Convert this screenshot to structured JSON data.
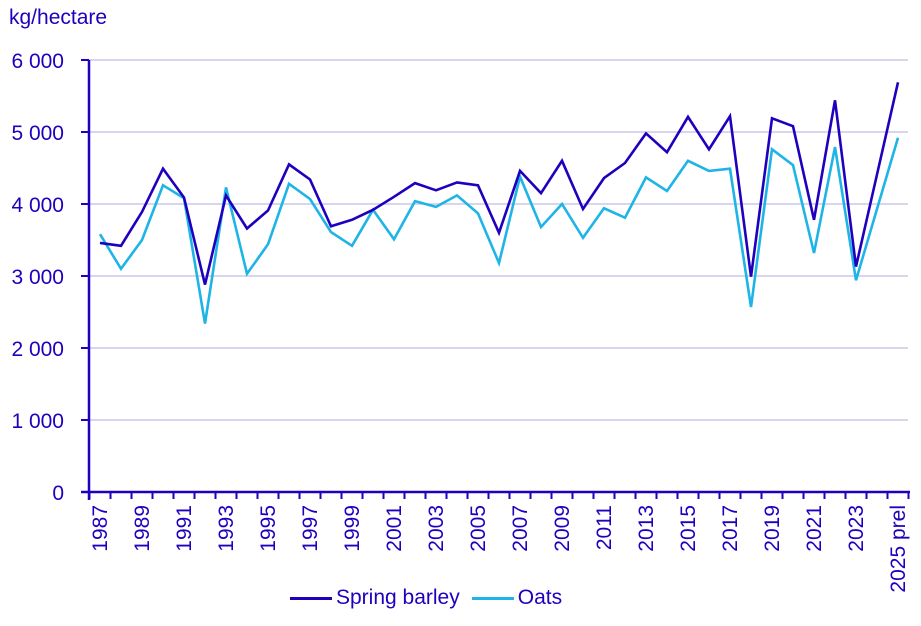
{
  "chart_data": {
    "type": "line",
    "title": "",
    "ylabel": "kg/hectare",
    "xlabel": "",
    "ylim": [
      0,
      6000
    ],
    "yticks": [
      0,
      1000,
      2000,
      3000,
      4000,
      5000,
      6000
    ],
    "ytick_labels": [
      "0",
      "1 000",
      "2 000",
      "3 000",
      "4 000",
      "5 000",
      "6 000"
    ],
    "grid": true,
    "legend_position": "bottom",
    "x": [
      "1987",
      "1988",
      "1989",
      "1990",
      "1991",
      "1992",
      "1993",
      "1994",
      "1995",
      "1996",
      "1997",
      "1998",
      "1999",
      "2000",
      "2001",
      "2002",
      "2003",
      "2004",
      "2005",
      "2006",
      "2007",
      "2008",
      "2009",
      "2010",
      "2011",
      "2012",
      "2013",
      "2014",
      "2015",
      "2016",
      "2017",
      "2018",
      "2019",
      "2020",
      "2021",
      "2022",
      "2023",
      "2024",
      "2025 prel"
    ],
    "xtick_labels": [
      "1987",
      "1989",
      "1991",
      "1993",
      "1995",
      "1997",
      "1999",
      "2001",
      "2003",
      "2005",
      "2007",
      "2009",
      "2011",
      "2013",
      "2015",
      "2017",
      "2019",
      "2021",
      "2023",
      "2025 prel"
    ],
    "series": [
      {
        "name": "Spring barley",
        "color": "#1E00BE",
        "values": [
          3460,
          3420,
          3890,
          4490,
          4090,
          2880,
          4120,
          3660,
          3910,
          4550,
          4340,
          3690,
          3780,
          3920,
          4100,
          4290,
          4190,
          4300,
          4260,
          3600,
          4460,
          4150,
          4600,
          3930,
          4360,
          4570,
          4980,
          4720,
          5210,
          4760,
          5220,
          2990,
          5190,
          5080,
          3780,
          5440,
          3130,
          4410,
          5690
        ]
      },
      {
        "name": "Oats",
        "color": "#1EB4E6",
        "values": [
          3580,
          3100,
          3500,
          4260,
          4080,
          2340,
          4230,
          3030,
          3440,
          4280,
          4070,
          3610,
          3420,
          3920,
          3510,
          4040,
          3960,
          4120,
          3870,
          3180,
          4380,
          3680,
          4000,
          3530,
          3940,
          3810,
          4370,
          4180,
          4600,
          4460,
          4490,
          2570,
          4760,
          4540,
          3320,
          4790,
          2940,
          3930,
          4920
        ]
      }
    ]
  },
  "legend": {
    "items": [
      {
        "label": "Spring barley",
        "color": "#1E00BE"
      },
      {
        "label": "Oats",
        "color": "#1EB4E6"
      }
    ]
  },
  "colors": {
    "axis": "#1E00BE",
    "grid": "#C8C8EC",
    "text": "#1E00BE"
  }
}
